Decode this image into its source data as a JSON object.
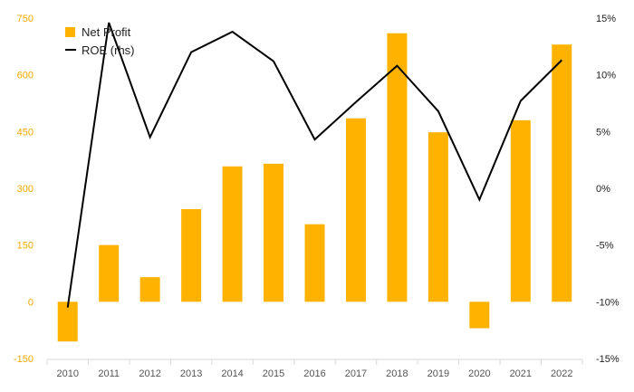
{
  "chart_data": {
    "type": "bar",
    "categories": [
      "2010",
      "2011",
      "2012",
      "2013",
      "2014",
      "2015",
      "2016",
      "2017",
      "2018",
      "2019",
      "2020",
      "2021",
      "2022"
    ],
    "series": [
      {
        "name": "Net Profit",
        "type": "bar",
        "axis": "left",
        "color": "#FFB300",
        "values": [
          -105,
          150,
          65,
          245,
          358,
          365,
          205,
          485,
          710,
          448,
          -70,
          480,
          680
        ]
      },
      {
        "name": "ROE (rhs)",
        "type": "line",
        "axis": "right",
        "color": "#000000",
        "values": [
          -10.5,
          14.6,
          4.5,
          12.0,
          13.8,
          11.2,
          4.3,
          7.6,
          10.8,
          6.8,
          -1.0,
          7.7,
          11.3
        ]
      }
    ],
    "y_left": {
      "min": -150,
      "max": 750,
      "ticks": [
        -150,
        0,
        150,
        300,
        450,
        600,
        750
      ]
    },
    "y_right": {
      "min": -15,
      "max": 15,
      "ticks": [
        "-15%",
        "-10%",
        "-5%",
        "0%",
        "5%",
        "10%",
        "15%"
      ]
    },
    "legend_placement": "top-left",
    "grid": false
  }
}
